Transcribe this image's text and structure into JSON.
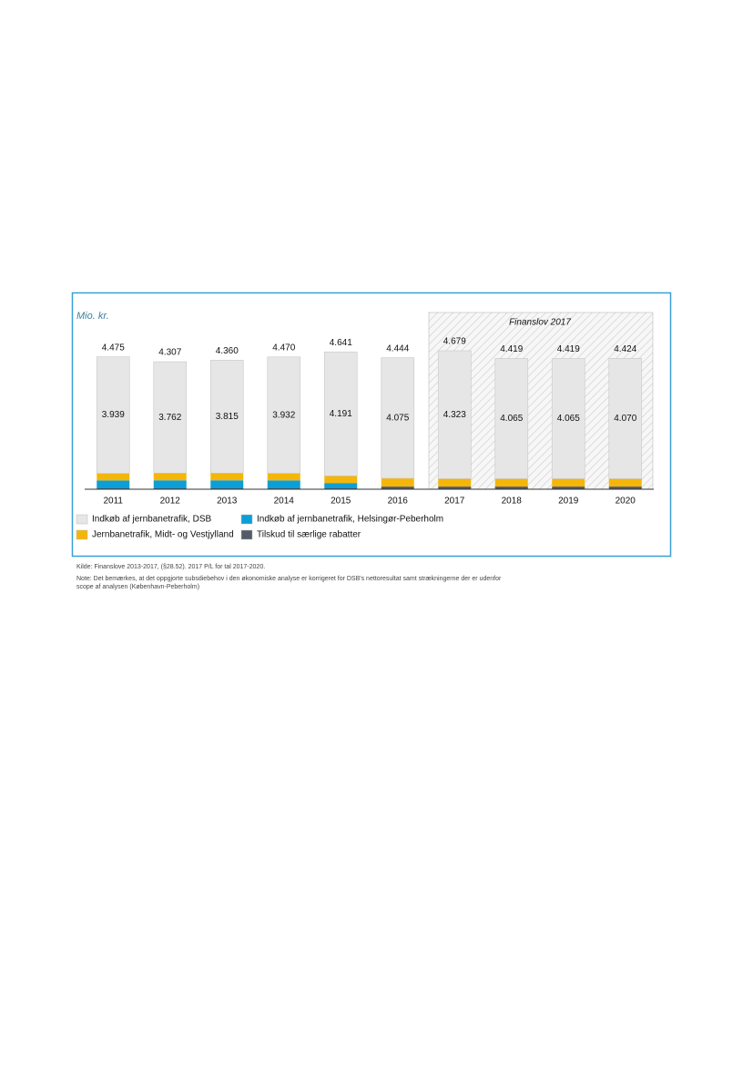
{
  "chart_data": {
    "type": "bar",
    "stacked": true,
    "y_label": "Mio. kr.",
    "annotation": "Finanslov 2017",
    "annotation_categories": [
      "2017",
      "2020"
    ],
    "categories": [
      "2011",
      "2012",
      "2013",
      "2014",
      "2015",
      "2016",
      "2017",
      "2018",
      "2019",
      "2020"
    ],
    "series": [
      {
        "name": "Tilskud til særlige rabatter",
        "color": "#535c66",
        "values": [
          30,
          30,
          30,
          30,
          30,
          90,
          90,
          90,
          90,
          90
        ]
      },
      {
        "name": "Indkøb af jernbanetrafik, Helsingør-Peberholm",
        "color": "#0a9fd9",
        "values": [
          266,
          270,
          270,
          268,
          180,
          0,
          0,
          0,
          0,
          0
        ]
      },
      {
        "name": "Jernbanetrafik, Midt- og Vestjylland",
        "color": "#f5b60a",
        "values": [
          240,
          245,
          245,
          240,
          240,
          279,
          266,
          264,
          264,
          264
        ]
      },
      {
        "name": "Indkøb af jernbanetrafik, DSB",
        "color": "#e6e6e6",
        "values": [
          3939,
          3762,
          3815,
          3932,
          4191,
          4075,
          4323,
          4065,
          4065,
          4070
        ],
        "value_labels": [
          "3.939",
          "3.762",
          "3.815",
          "3.932",
          "4.191",
          "4.075",
          "4.323",
          "4.065",
          "4.065",
          "4.070"
        ]
      }
    ],
    "totals": {
      "values": [
        4475,
        4307,
        4360,
        4470,
        4641,
        4444,
        4679,
        4419,
        4419,
        4424
      ],
      "value_labels": [
        "4.475",
        "4.307",
        "4.360",
        "4.470",
        "4.641",
        "4.444",
        "4.679",
        "4.419",
        "4.419",
        "4.424"
      ]
    },
    "source": "Kilde: Finanslove 2013-2017, (§28.52). 2017 P/L for tal 2017-2020.",
    "note": [
      "Note: Det bemærkes, at det oppgjorte subsdiebehov i den økonomiske analyse er korrigeret for DSB's nettoresultat samt strækningerne der er udenfor",
      "scope af analysen (København-Peberholm)"
    ]
  }
}
